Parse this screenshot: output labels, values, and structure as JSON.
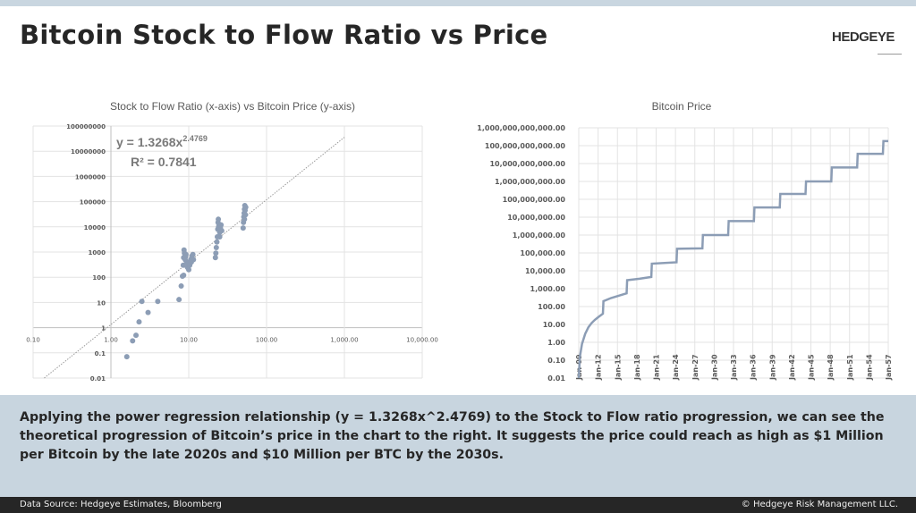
{
  "header": {
    "title": "Bitcoin Stock to Flow Ratio vs Price",
    "logo": "HEDGEYE"
  },
  "chart_data": [
    {
      "type": "scatter",
      "title": "Stock to Flow Ratio (x-axis) vs Bitcoin Price (y-axis)",
      "x_scale": "log",
      "y_scale": "log",
      "xlim": [
        0.1,
        10000
      ],
      "ylim": [
        0.01,
        100000000
      ],
      "x_ticks": [
        "0.10",
        "1.00",
        "10.00",
        "100.00",
        "1,000.00",
        "10,000.00"
      ],
      "y_ticks": [
        "0.01",
        "0.1",
        "1",
        "10",
        "100",
        "1000",
        "10000",
        "100000",
        "1000000",
        "10000000",
        "100000000"
      ],
      "grid": true,
      "color": "#8c9db5",
      "trendline": {
        "type": "power",
        "a": 1.3268,
        "b": 2.4769,
        "equation_label": "y = 1.3268x",
        "equation_exponent": "2.4769",
        "r2_label": "R² = 0.7841"
      },
      "points": [
        [
          1.6,
          0.07
        ],
        [
          1.9,
          0.3
        ],
        [
          2.1,
          0.5
        ],
        [
          2.3,
          1.7
        ],
        [
          2.5,
          11
        ],
        [
          3,
          4
        ],
        [
          4,
          11
        ],
        [
          7.5,
          13
        ],
        [
          8,
          45
        ],
        [
          8.3,
          110
        ],
        [
          8.6,
          120
        ],
        [
          8.5,
          300
        ],
        [
          8.6,
          600
        ],
        [
          8.7,
          1200
        ],
        [
          8.8,
          900
        ],
        [
          9,
          500
        ],
        [
          9.2,
          800
        ],
        [
          9.4,
          400
        ],
        [
          9.6,
          250
        ],
        [
          9.8,
          350
        ],
        [
          10,
          200
        ],
        [
          10.3,
          300
        ],
        [
          10.6,
          500
        ],
        [
          11,
          700
        ],
        [
          11.3,
          800
        ],
        [
          11.5,
          500
        ],
        [
          10.8,
          400
        ],
        [
          9.1,
          650
        ],
        [
          22,
          600
        ],
        [
          22.3,
          900
        ],
        [
          22.6,
          1500
        ],
        [
          23,
          2500
        ],
        [
          23.3,
          4000
        ],
        [
          23.6,
          8000
        ],
        [
          23.8,
          15000
        ],
        [
          24,
          20000
        ],
        [
          24.5,
          12000
        ],
        [
          25,
          6000
        ],
        [
          25.5,
          9000
        ],
        [
          26,
          12000
        ],
        [
          26.5,
          7000
        ],
        [
          25,
          4000
        ],
        [
          24.2,
          10000
        ],
        [
          50,
          9000
        ],
        [
          50.5,
          15000
        ],
        [
          51,
          25000
        ],
        [
          51.5,
          35000
        ],
        [
          52,
          50000
        ],
        [
          52.5,
          70000
        ],
        [
          53,
          45000
        ],
        [
          53.5,
          30000
        ],
        [
          54,
          60000
        ],
        [
          52,
          20000
        ]
      ]
    },
    {
      "type": "line",
      "title": "Bitcoin Price",
      "y_scale": "log",
      "ylim": [
        0.01,
        1000000000000
      ],
      "y_ticks": [
        "0.01",
        "0.10",
        "1.00",
        "10.00",
        "100.00",
        "1,000.00",
        "10,000.00",
        "100,000.00",
        "1,000,000.00",
        "10,000,000.00",
        "100,000,000.00",
        "1,000,000,000.00",
        "10,000,000,000.00",
        "100,000,000,000.00",
        "1,000,000,000,000.00"
      ],
      "x_ticks": [
        "Jan-09",
        "Jan-12",
        "Jan-15",
        "Jan-18",
        "Jan-21",
        "Jan-24",
        "Jan-27",
        "Jan-30",
        "Jan-33",
        "Jan-36",
        "Jan-39",
        "Jan-42",
        "Jan-45",
        "Jan-48",
        "Jan-51",
        "Jan-54",
        "Jan-57"
      ],
      "xlim": [
        "2009-01",
        "2057-01"
      ],
      "grid": true,
      "color": "#8c9db5",
      "points": [
        [
          "2009-01",
          0.01
        ],
        [
          "2009-03",
          0.15
        ],
        [
          "2009-07",
          0.8
        ],
        [
          "2010-01",
          3
        ],
        [
          "2010-07",
          7
        ],
        [
          "2011-01",
          12
        ],
        [
          "2011-07",
          18
        ],
        [
          "2012-01",
          25
        ],
        [
          "2012-10",
          40
        ],
        [
          "2012-11",
          200
        ],
        [
          "2014-01",
          300
        ],
        [
          "2016-06",
          550
        ],
        [
          "2016-07",
          3000
        ],
        [
          "2018-06",
          3600
        ],
        [
          "2020-04",
          4500
        ],
        [
          "2020-05",
          25000
        ],
        [
          "2024-03",
          30000
        ],
        [
          "2024-04",
          170000
        ],
        [
          "2028-03",
          180000
        ],
        [
          "2028-04",
          1000000
        ],
        [
          "2032-03",
          1000000
        ],
        [
          "2032-04",
          6000000
        ],
        [
          "2036-03",
          6000000
        ],
        [
          "2036-04",
          35000000
        ],
        [
          "2040-03",
          35000000
        ],
        [
          "2040-04",
          200000000
        ],
        [
          "2044-03",
          200000000
        ],
        [
          "2044-04",
          1000000000
        ],
        [
          "2048-03",
          1000000000
        ],
        [
          "2048-04",
          6000000000
        ],
        [
          "2052-03",
          6000000000
        ],
        [
          "2052-04",
          35000000000
        ],
        [
          "2056-03",
          35000000000
        ],
        [
          "2056-04",
          180000000000
        ],
        [
          "2057-01",
          180000000000
        ]
      ]
    }
  ],
  "panel": {
    "text": "Applying the power regression relationship (y = 1.3268x^2.4769) to the Stock to Flow ratio progression, we can see the theoretical progression of Bitcoin’s price in the chart to the right. It suggests the price could reach as high as $1 Million per Bitcoin by the late 2020s and $10 Million per BTC by the 2030s."
  },
  "footer": {
    "source": "Data Source: Hedgeye Estimates, Bloomberg",
    "copyright": "© Hedgeye Risk Management LLC."
  }
}
